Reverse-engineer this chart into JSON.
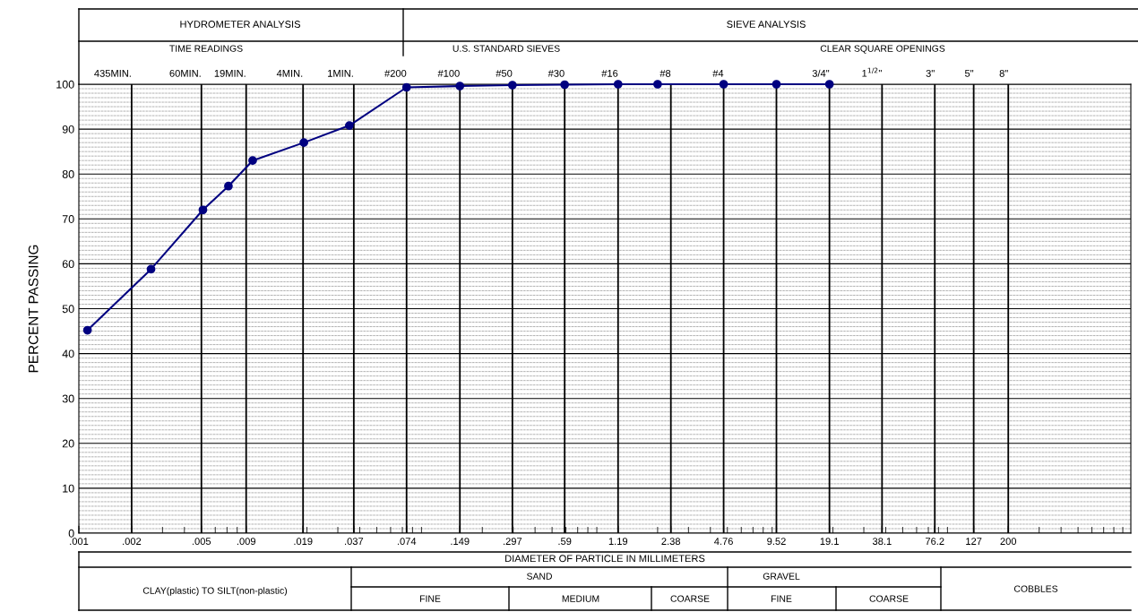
{
  "chart_data": {
    "type": "line",
    "ylabel": "PERCENT PASSING",
    "xlabel": "DIAMETER OF PARTICLE IN MILLIMETERS",
    "log": "x",
    "marker": "circle",
    "line_style": "solid",
    "grid": true,
    "x": [
      0.00112,
      0.00258,
      0.0051,
      0.00713,
      0.0098,
      0.0192,
      0.0349,
      0.074,
      0.149,
      0.297,
      0.59,
      1.19,
      2.0,
      4.76,
      9.52,
      19.1
    ],
    "series": [
      {
        "color": "#000080",
        "values": [
          45.2,
          58.8,
          72,
          77.3,
          83,
          87,
          90.8,
          99.3,
          99.6,
          99.8,
          99.9,
          100,
          100,
          100,
          100,
          100
        ]
      }
    ],
    "xlim": [
      0.001,
      1000
    ],
    "xticks": [
      {
        "value": 0.001,
        "label": ".001"
      },
      {
        "value": 0.002,
        "label": ".002"
      },
      {
        "value": 0.005,
        "label": ".005"
      },
      {
        "value": 0.009,
        "label": ".009"
      },
      {
        "value": 0.019,
        "label": ".019"
      },
      {
        "value": 0.037,
        "label": ".037"
      },
      {
        "value": 0.074,
        "label": ".074"
      },
      {
        "value": 0.149,
        "label": ".149"
      },
      {
        "value": 0.297,
        "label": ".297"
      },
      {
        "value": 0.59,
        "label": ".59"
      },
      1.19,
      2.38,
      4.76,
      9.52,
      19.1,
      38.1,
      76.2,
      127,
      200
    ],
    "ylim": [
      0,
      100
    ],
    "yticks": [
      0,
      {
        "value": 1,
        "label": null
      },
      {
        "value": 2,
        "label": null
      },
      {
        "value": 3,
        "label": null
      },
      {
        "value": 4,
        "label": null
      },
      {
        "value": 5,
        "label": null
      },
      {
        "value": 6,
        "label": null
      },
      {
        "value": 7,
        "label": null
      },
      {
        "value": 8,
        "label": null
      },
      {
        "value": 9,
        "label": null
      },
      10,
      {
        "value": 11,
        "label": null
      },
      {
        "value": 12,
        "label": null
      },
      {
        "value": 13,
        "label": null
      },
      {
        "value": 14,
        "label": null
      },
      {
        "value": 15,
        "label": null
      },
      {
        "value": 16,
        "label": null
      },
      {
        "value": 17,
        "label": null
      },
      {
        "value": 18,
        "label": null
      },
      {
        "value": 19,
        "label": null
      },
      20,
      {
        "value": 21,
        "label": null
      },
      {
        "value": 22,
        "label": null
      },
      {
        "value": 23,
        "label": null
      },
      {
        "value": 24,
        "label": null
      },
      {
        "value": 25,
        "label": null
      },
      {
        "value": 26,
        "label": null
      },
      {
        "value": 27,
        "label": null
      },
      {
        "value": 28,
        "label": null
      },
      {
        "value": 29,
        "label": null
      },
      30,
      {
        "value": 31,
        "label": null
      },
      {
        "value": 32,
        "label": null
      },
      {
        "value": 33,
        "label": null
      },
      {
        "value": 34,
        "label": null
      },
      {
        "value": 35,
        "label": null
      },
      {
        "value": 36,
        "label": null
      },
      {
        "value": 37,
        "label": null
      },
      {
        "value": 38,
        "label": null
      },
      {
        "value": 39,
        "label": null
      },
      40,
      {
        "value": 41,
        "label": null
      },
      {
        "value": 42,
        "label": null
      },
      {
        "value": 43,
        "label": null
      },
      {
        "value": 44,
        "label": null
      },
      {
        "value": 45,
        "label": null
      },
      {
        "value": 46,
        "label": null
      },
      {
        "value": 47,
        "label": null
      },
      {
        "value": 48,
        "label": null
      },
      {
        "value": 49,
        "label": null
      },
      50,
      {
        "value": 51,
        "label": null
      },
      {
        "value": 52,
        "label": null
      },
      {
        "value": 53,
        "label": null
      },
      {
        "value": 54,
        "label": null
      },
      {
        "value": 55,
        "label": null
      },
      {
        "value": 56,
        "label": null
      },
      {
        "value": 57,
        "label": null
      },
      {
        "value": 58,
        "label": null
      },
      {
        "value": 59,
        "label": null
      },
      60,
      {
        "value": 61,
        "label": null
      },
      {
        "value": 62,
        "label": null
      },
      {
        "value": 63,
        "label": null
      },
      {
        "value": 64,
        "label": null
      },
      {
        "value": 65,
        "label": null
      },
      {
        "value": 66,
        "label": null
      },
      {
        "value": 67,
        "label": null
      },
      {
        "value": 68,
        "label": null
      },
      {
        "value": 69,
        "label": null
      },
      70,
      {
        "value": 71,
        "label": null
      },
      {
        "value": 72,
        "label": null
      },
      {
        "value": 73,
        "label": null
      },
      {
        "value": 74,
        "label": null
      },
      {
        "value": 75,
        "label": null
      },
      {
        "value": 76,
        "label": null
      },
      {
        "value": 77,
        "label": null
      },
      {
        "value": 78,
        "label": null
      },
      {
        "value": 79,
        "label": null
      },
      80,
      {
        "value": 81,
        "label": null
      },
      {
        "value": 82,
        "label": null
      },
      {
        "value": 83,
        "label": null
      },
      {
        "value": 84,
        "label": null
      },
      {
        "value": 85,
        "label": null
      },
      {
        "value": 86,
        "label": null
      },
      {
        "value": 87,
        "label": null
      },
      {
        "value": 88,
        "label": null
      },
      {
        "value": 89,
        "label": null
      },
      90,
      {
        "value": 91,
        "label": null
      },
      {
        "value": 92,
        "label": null
      },
      {
        "value": 93,
        "label": null
      },
      {
        "value": 94,
        "label": null
      },
      {
        "value": 95,
        "label": null
      },
      {
        "value": 96,
        "label": null
      },
      {
        "value": 97,
        "label": null
      },
      {
        "value": 98,
        "label": null
      },
      {
        "value": 99,
        "label": null
      },
      100
    ],
    "annotations": [
      "HYDROMETER ANALYSIS",
      "SIEVE ANALYSIS",
      "TIME READINGS",
      "U.S. STANDARD SIEVES",
      "CLEAR SQUARE OPENINGS",
      "CLAY(plastic) TO SILT(non-plastic)",
      "SAND",
      "FINE",
      "MEDIUM",
      "COARSE",
      "GRAVEL",
      "FINE",
      "COARSE",
      "COBBLES",
      "435MIN.",
      "60MIN.",
      "19MIN.",
      "4MIN.",
      "1MIN.",
      "#200",
      "#100",
      "#50",
      "#30",
      "#16",
      "#8",
      "#4",
      "3/4\"",
      "1$^{1/2}$\"",
      "3\"",
      "5\"",
      "8\""
    ]
  }
}
